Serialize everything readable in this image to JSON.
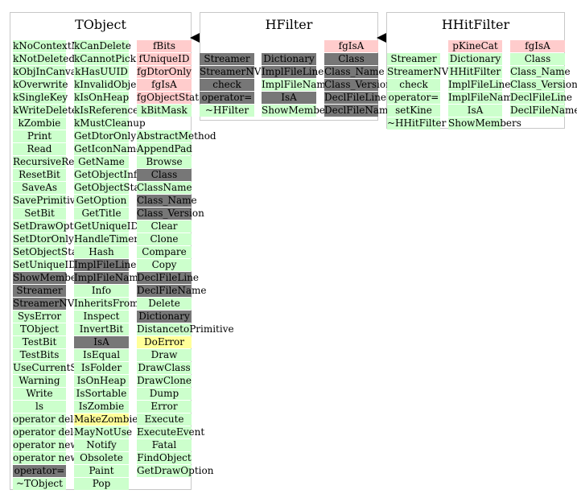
{
  "panels": [
    {
      "title": "TObject",
      "columns": [
        [
          [
            "kNoContextMenu",
            "public"
          ],
          [
            "kNotDeleted",
            "public"
          ],
          [
            "kObjInCanvas",
            "public"
          ],
          [
            "kOverwrite",
            "public"
          ],
          [
            "kSingleKey",
            "public"
          ],
          [
            "kWriteDelete",
            "public"
          ],
          [
            "kZombie",
            "public"
          ],
          [
            "Print",
            "public"
          ],
          [
            "Read",
            "public"
          ],
          [
            "RecursiveRemove",
            "public"
          ],
          [
            "ResetBit",
            "public"
          ],
          [
            "SaveAs",
            "public"
          ],
          [
            "SavePrimitive",
            "public"
          ],
          [
            "SetBit",
            "public"
          ],
          [
            "SetDrawOption",
            "public"
          ],
          [
            "SetDtorOnly",
            "public"
          ],
          [
            "SetObjectStat",
            "public"
          ],
          [
            "SetUniqueID",
            "public"
          ],
          [
            "ShowMembers",
            "inherited"
          ],
          [
            "Streamer",
            "inherited"
          ],
          [
            "StreamerNVirtual",
            "inherited"
          ],
          [
            "SysError",
            "public"
          ],
          [
            "TObject",
            "public"
          ],
          [
            "TestBit",
            "public"
          ],
          [
            "TestBits",
            "public"
          ],
          [
            "UseCurrentStyle",
            "public"
          ],
          [
            "Warning",
            "public"
          ],
          [
            "Write",
            "public"
          ],
          [
            "ls",
            "public"
          ],
          [
            "operator delete",
            "public"
          ],
          [
            "operator delete[]",
            "public"
          ],
          [
            "operator new",
            "public"
          ],
          [
            "operator new[]",
            "public"
          ],
          [
            "operator=",
            "inherited"
          ],
          [
            "~TObject",
            "public"
          ]
        ],
        [
          [
            "kCanDelete",
            "public"
          ],
          [
            "kCannotPick",
            "public"
          ],
          [
            "kHasUUID",
            "public"
          ],
          [
            "kInvalidObject",
            "public"
          ],
          [
            "kIsOnHeap",
            "public"
          ],
          [
            "kIsReferenced",
            "public"
          ],
          [
            "kMustCleanup",
            "public"
          ],
          [
            "GetDtorOnly",
            "public"
          ],
          [
            "GetIconName",
            "public"
          ],
          [
            "GetName",
            "public"
          ],
          [
            "GetObjectInfo",
            "public"
          ],
          [
            "GetObjectStat",
            "public"
          ],
          [
            "GetOption",
            "public"
          ],
          [
            "GetTitle",
            "public"
          ],
          [
            "GetUniqueID",
            "public"
          ],
          [
            "HandleTimer",
            "public"
          ],
          [
            "Hash",
            "public"
          ],
          [
            "ImplFileLine",
            "inherited"
          ],
          [
            "ImplFileName",
            "inherited"
          ],
          [
            "Info",
            "public"
          ],
          [
            "InheritsFrom",
            "public"
          ],
          [
            "Inspect",
            "public"
          ],
          [
            "InvertBit",
            "public"
          ],
          [
            "IsA",
            "inherited"
          ],
          [
            "IsEqual",
            "public"
          ],
          [
            "IsFolder",
            "public"
          ],
          [
            "IsOnHeap",
            "public"
          ],
          [
            "IsSortable",
            "public"
          ],
          [
            "IsZombie",
            "public"
          ],
          [
            "MakeZombie",
            "highlight"
          ],
          [
            "MayNotUse",
            "public"
          ],
          [
            "Notify",
            "public"
          ],
          [
            "Obsolete",
            "public"
          ],
          [
            "Paint",
            "public"
          ],
          [
            "Pop",
            "public"
          ]
        ],
        [
          [
            "fBits",
            "private"
          ],
          [
            "fUniqueID",
            "private"
          ],
          [
            "fgDtorOnly",
            "private"
          ],
          [
            "fgIsA",
            "private"
          ],
          [
            "fgObjectStat",
            "private"
          ],
          [
            "kBitMask",
            "public"
          ],
          [
            "",
            "none"
          ],
          [
            "AbstractMethod",
            "public"
          ],
          [
            "AppendPad",
            "public"
          ],
          [
            "Browse",
            "public"
          ],
          [
            "Class",
            "inherited"
          ],
          [
            "ClassName",
            "public"
          ],
          [
            "Class_Name",
            "inherited"
          ],
          [
            "Class_Version",
            "inherited"
          ],
          [
            "Clear",
            "public"
          ],
          [
            "Clone",
            "public"
          ],
          [
            "Compare",
            "public"
          ],
          [
            "Copy",
            "public"
          ],
          [
            "DeclFileLine",
            "inherited"
          ],
          [
            "DeclFileName",
            "inherited"
          ],
          [
            "Delete",
            "public"
          ],
          [
            "Dictionary",
            "inherited"
          ],
          [
            "DistancetoPrimitive",
            "public"
          ],
          [
            "DoError",
            "highlight"
          ],
          [
            "Draw",
            "public"
          ],
          [
            "DrawClass",
            "public"
          ],
          [
            "DrawClone",
            "public"
          ],
          [
            "Dump",
            "public"
          ],
          [
            "Error",
            "public"
          ],
          [
            "Execute",
            "public"
          ],
          [
            "ExecuteEvent",
            "public"
          ],
          [
            "Fatal",
            "public"
          ],
          [
            "FindObject",
            "public"
          ],
          [
            "GetDrawOption",
            "public"
          ]
        ]
      ]
    },
    {
      "title": "HFilter",
      "columns": [
        [
          [
            "",
            "none"
          ],
          [
            "Streamer",
            "inherited"
          ],
          [
            "StreamerNVirtual",
            "inherited"
          ],
          [
            "check",
            "inherited"
          ],
          [
            "operator=",
            "inherited"
          ],
          [
            "~HFilter",
            "public"
          ]
        ],
        [
          [
            "",
            "none"
          ],
          [
            "Dictionary",
            "inherited"
          ],
          [
            "ImplFileLine",
            "inherited"
          ],
          [
            "ImplFileName",
            "public"
          ],
          [
            "IsA",
            "inherited"
          ],
          [
            "ShowMembers",
            "public"
          ]
        ],
        [
          [
            "fgIsA",
            "private"
          ],
          [
            "Class",
            "inherited"
          ],
          [
            "Class_Name",
            "inherited"
          ],
          [
            "Class_Version",
            "inherited"
          ],
          [
            "DeclFileLine",
            "inherited"
          ],
          [
            "DeclFileName",
            "inherited"
          ]
        ]
      ]
    },
    {
      "title": "HHitFilter",
      "columns": [
        [
          [
            "",
            "none"
          ],
          [
            "Streamer",
            "public"
          ],
          [
            "StreamerNVirtual",
            "public"
          ],
          [
            "check",
            "public"
          ],
          [
            "operator=",
            "public"
          ],
          [
            "setKine",
            "public"
          ],
          [
            "~HHitFilter",
            "public"
          ]
        ],
        [
          [
            "pKineCat",
            "private"
          ],
          [
            "Dictionary",
            "public"
          ],
          [
            "HHitFilter",
            "public"
          ],
          [
            "ImplFileLine",
            "public"
          ],
          [
            "ImplFileName",
            "public"
          ],
          [
            "IsA",
            "public"
          ],
          [
            "ShowMembers",
            "public"
          ]
        ],
        [
          [
            "fgIsA",
            "private"
          ],
          [
            "Class",
            "public"
          ],
          [
            "Class_Name",
            "public"
          ],
          [
            "Class_Version",
            "public"
          ],
          [
            "DeclFileLine",
            "public"
          ],
          [
            "DeclFileName",
            "public"
          ]
        ]
      ]
    }
  ],
  "colors": {
    "public": "#ccffcc",
    "private": "#ffcccc",
    "inherited": "#777777",
    "highlight": "#ffff99",
    "border": "#c8c8c8"
  }
}
